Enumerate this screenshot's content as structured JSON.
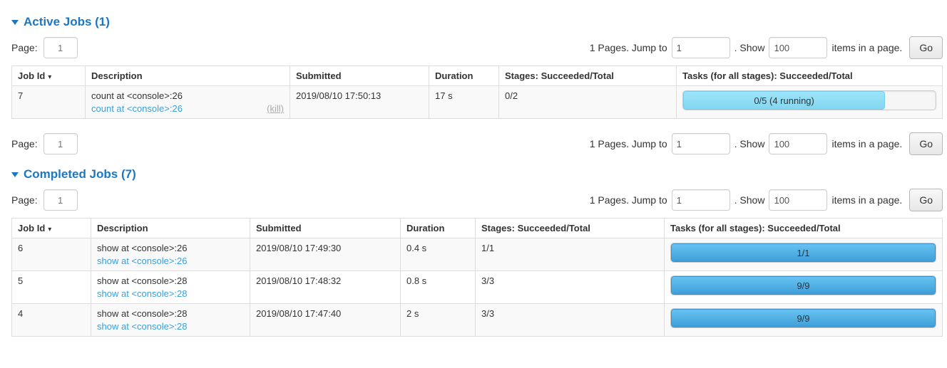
{
  "colors": {
    "title_blue": "#1c77c3",
    "link_blue": "#3aa0da",
    "running_bar": "#8ddff6",
    "done_bar": "#4aabe2",
    "stripe_row": "#f9f9f9"
  },
  "pagination": {
    "page_label": "Page:",
    "page_value": "1",
    "pages_info": "1 Pages. Jump to",
    "jump_value": "1",
    "show_label": ". Show",
    "show_value": "100",
    "items_label": "items in a page.",
    "go_label": "Go"
  },
  "table_headers": {
    "job_id": "Job Id",
    "sort_arrow": "▾",
    "description": "Description",
    "submitted": "Submitted",
    "duration": "Duration",
    "stages": "Stages: Succeeded/Total",
    "tasks": "Tasks (for all stages): Succeeded/Total"
  },
  "active": {
    "title": "Active Jobs (1)",
    "rows": [
      {
        "job_id": "7",
        "description": "count at <console>:26",
        "description_link": "count at <console>:26",
        "kill_label": "(kill)",
        "submitted": "2019/08/10 17:50:13",
        "duration": "17 s",
        "stages": "0/2",
        "tasks_label": "0/5 (4 running)",
        "tasks_percent": 80
      }
    ]
  },
  "completed": {
    "title": "Completed Jobs (7)",
    "rows": [
      {
        "job_id": "6",
        "description": "show at <console>:26",
        "description_link": "show at <console>:26",
        "submitted": "2019/08/10 17:49:30",
        "duration": "0.4 s",
        "stages": "1/1",
        "tasks_label": "1/1",
        "tasks_percent": 100
      },
      {
        "job_id": "5",
        "description": "show at <console>:28",
        "description_link": "show at <console>:28",
        "submitted": "2019/08/10 17:48:32",
        "duration": "0.8 s",
        "stages": "3/3",
        "tasks_label": "9/9",
        "tasks_percent": 100
      },
      {
        "job_id": "4",
        "description": "show at <console>:28",
        "description_link": "show at <console>:28",
        "submitted": "2019/08/10 17:47:40",
        "duration": "2 s",
        "stages": "3/3",
        "tasks_label": "9/9",
        "tasks_percent": 100
      }
    ]
  }
}
